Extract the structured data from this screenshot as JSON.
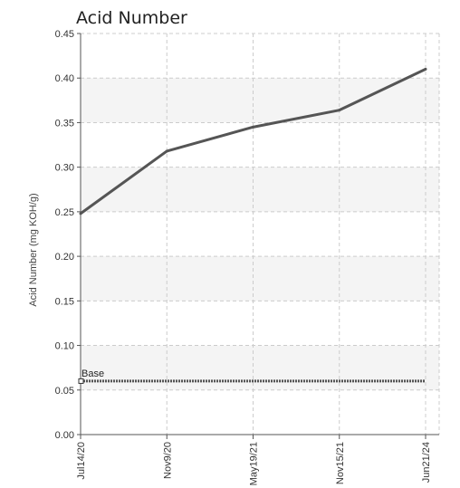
{
  "chart_data": {
    "type": "line",
    "title": "Acid Number",
    "ylabel": "Acid Number (mg KOH/g)",
    "xlabel": "",
    "categories": [
      "Jul14/20",
      "Nov9/20",
      "May19/21",
      "Nov15/21",
      "Jun21/24"
    ],
    "ylim": [
      0,
      0.45
    ],
    "yticks": [
      "0.00",
      "0.05",
      "0.10",
      "0.15",
      "0.20",
      "0.25",
      "0.30",
      "0.35",
      "0.40",
      "0.45"
    ],
    "series": [
      {
        "values": [
          0.248,
          0.318,
          0.345,
          0.364,
          0.41
        ],
        "color": "#555555"
      }
    ],
    "reference_line": {
      "label": "Base",
      "value": 0.06,
      "color": "#555555"
    },
    "grid": true,
    "band_color": "#f4f4f4"
  }
}
